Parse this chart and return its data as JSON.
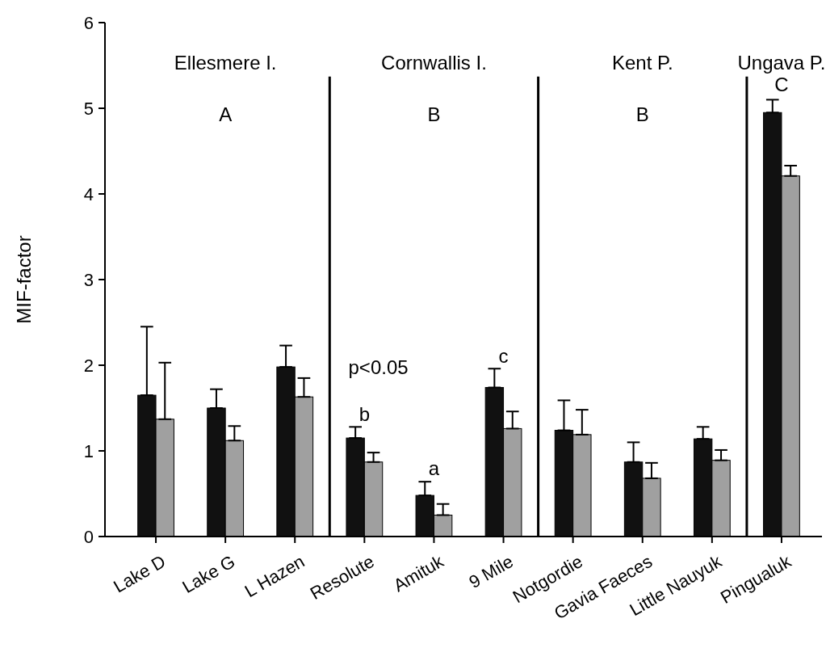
{
  "chart_data": {
    "type": "bar",
    "ylabel": "MIF-factor",
    "categories": [
      "Lake D",
      "Lake G",
      "L Hazen",
      "Resolute",
      "Amituk",
      "9 Mile",
      "Notgordie",
      "Gavia Faeces",
      "Little Nauyuk",
      "Pingualuk"
    ],
    "series": [
      {
        "color": "#111111",
        "values": [
          1.65,
          1.5,
          1.98,
          1.15,
          0.48,
          1.74,
          1.24,
          0.87,
          1.14,
          4.95
        ],
        "errors": [
          [
            1.65,
            2.45
          ],
          [
            1.5,
            1.72
          ],
          [
            1.98,
            2.23
          ],
          [
            1.15,
            1.28
          ],
          [
            0.48,
            0.64
          ],
          [
            1.74,
            1.96
          ],
          [
            1.24,
            1.59
          ],
          [
            0.87,
            1.1
          ],
          [
            1.14,
            1.28
          ],
          [
            4.95,
            5.1
          ]
        ]
      },
      {
        "color": "#a0a0a0",
        "values": [
          1.37,
          1.12,
          1.63,
          0.87,
          0.25,
          1.26,
          1.19,
          0.68,
          0.89,
          4.21
        ],
        "errors": [
          [
            1.37,
            2.03
          ],
          [
            1.12,
            1.29
          ],
          [
            1.63,
            1.85
          ],
          [
            0.87,
            0.98
          ],
          [
            0.25,
            0.38
          ],
          [
            1.26,
            1.46
          ],
          [
            1.19,
            1.48
          ],
          [
            0.68,
            0.86
          ],
          [
            0.89,
            1.01
          ],
          [
            4.21,
            4.33
          ]
        ]
      }
    ],
    "ylim": [
      0,
      6
    ],
    "yticks": [
      0,
      1,
      2,
      3,
      4,
      5,
      6
    ],
    "grid": false,
    "annotations": [
      "Ellesmere I.",
      "A",
      "Cornwallis I.",
      "B",
      "Kent P.",
      "B",
      "Ungava P.",
      "C",
      "p<0.05",
      "b",
      "a",
      "c"
    ]
  }
}
